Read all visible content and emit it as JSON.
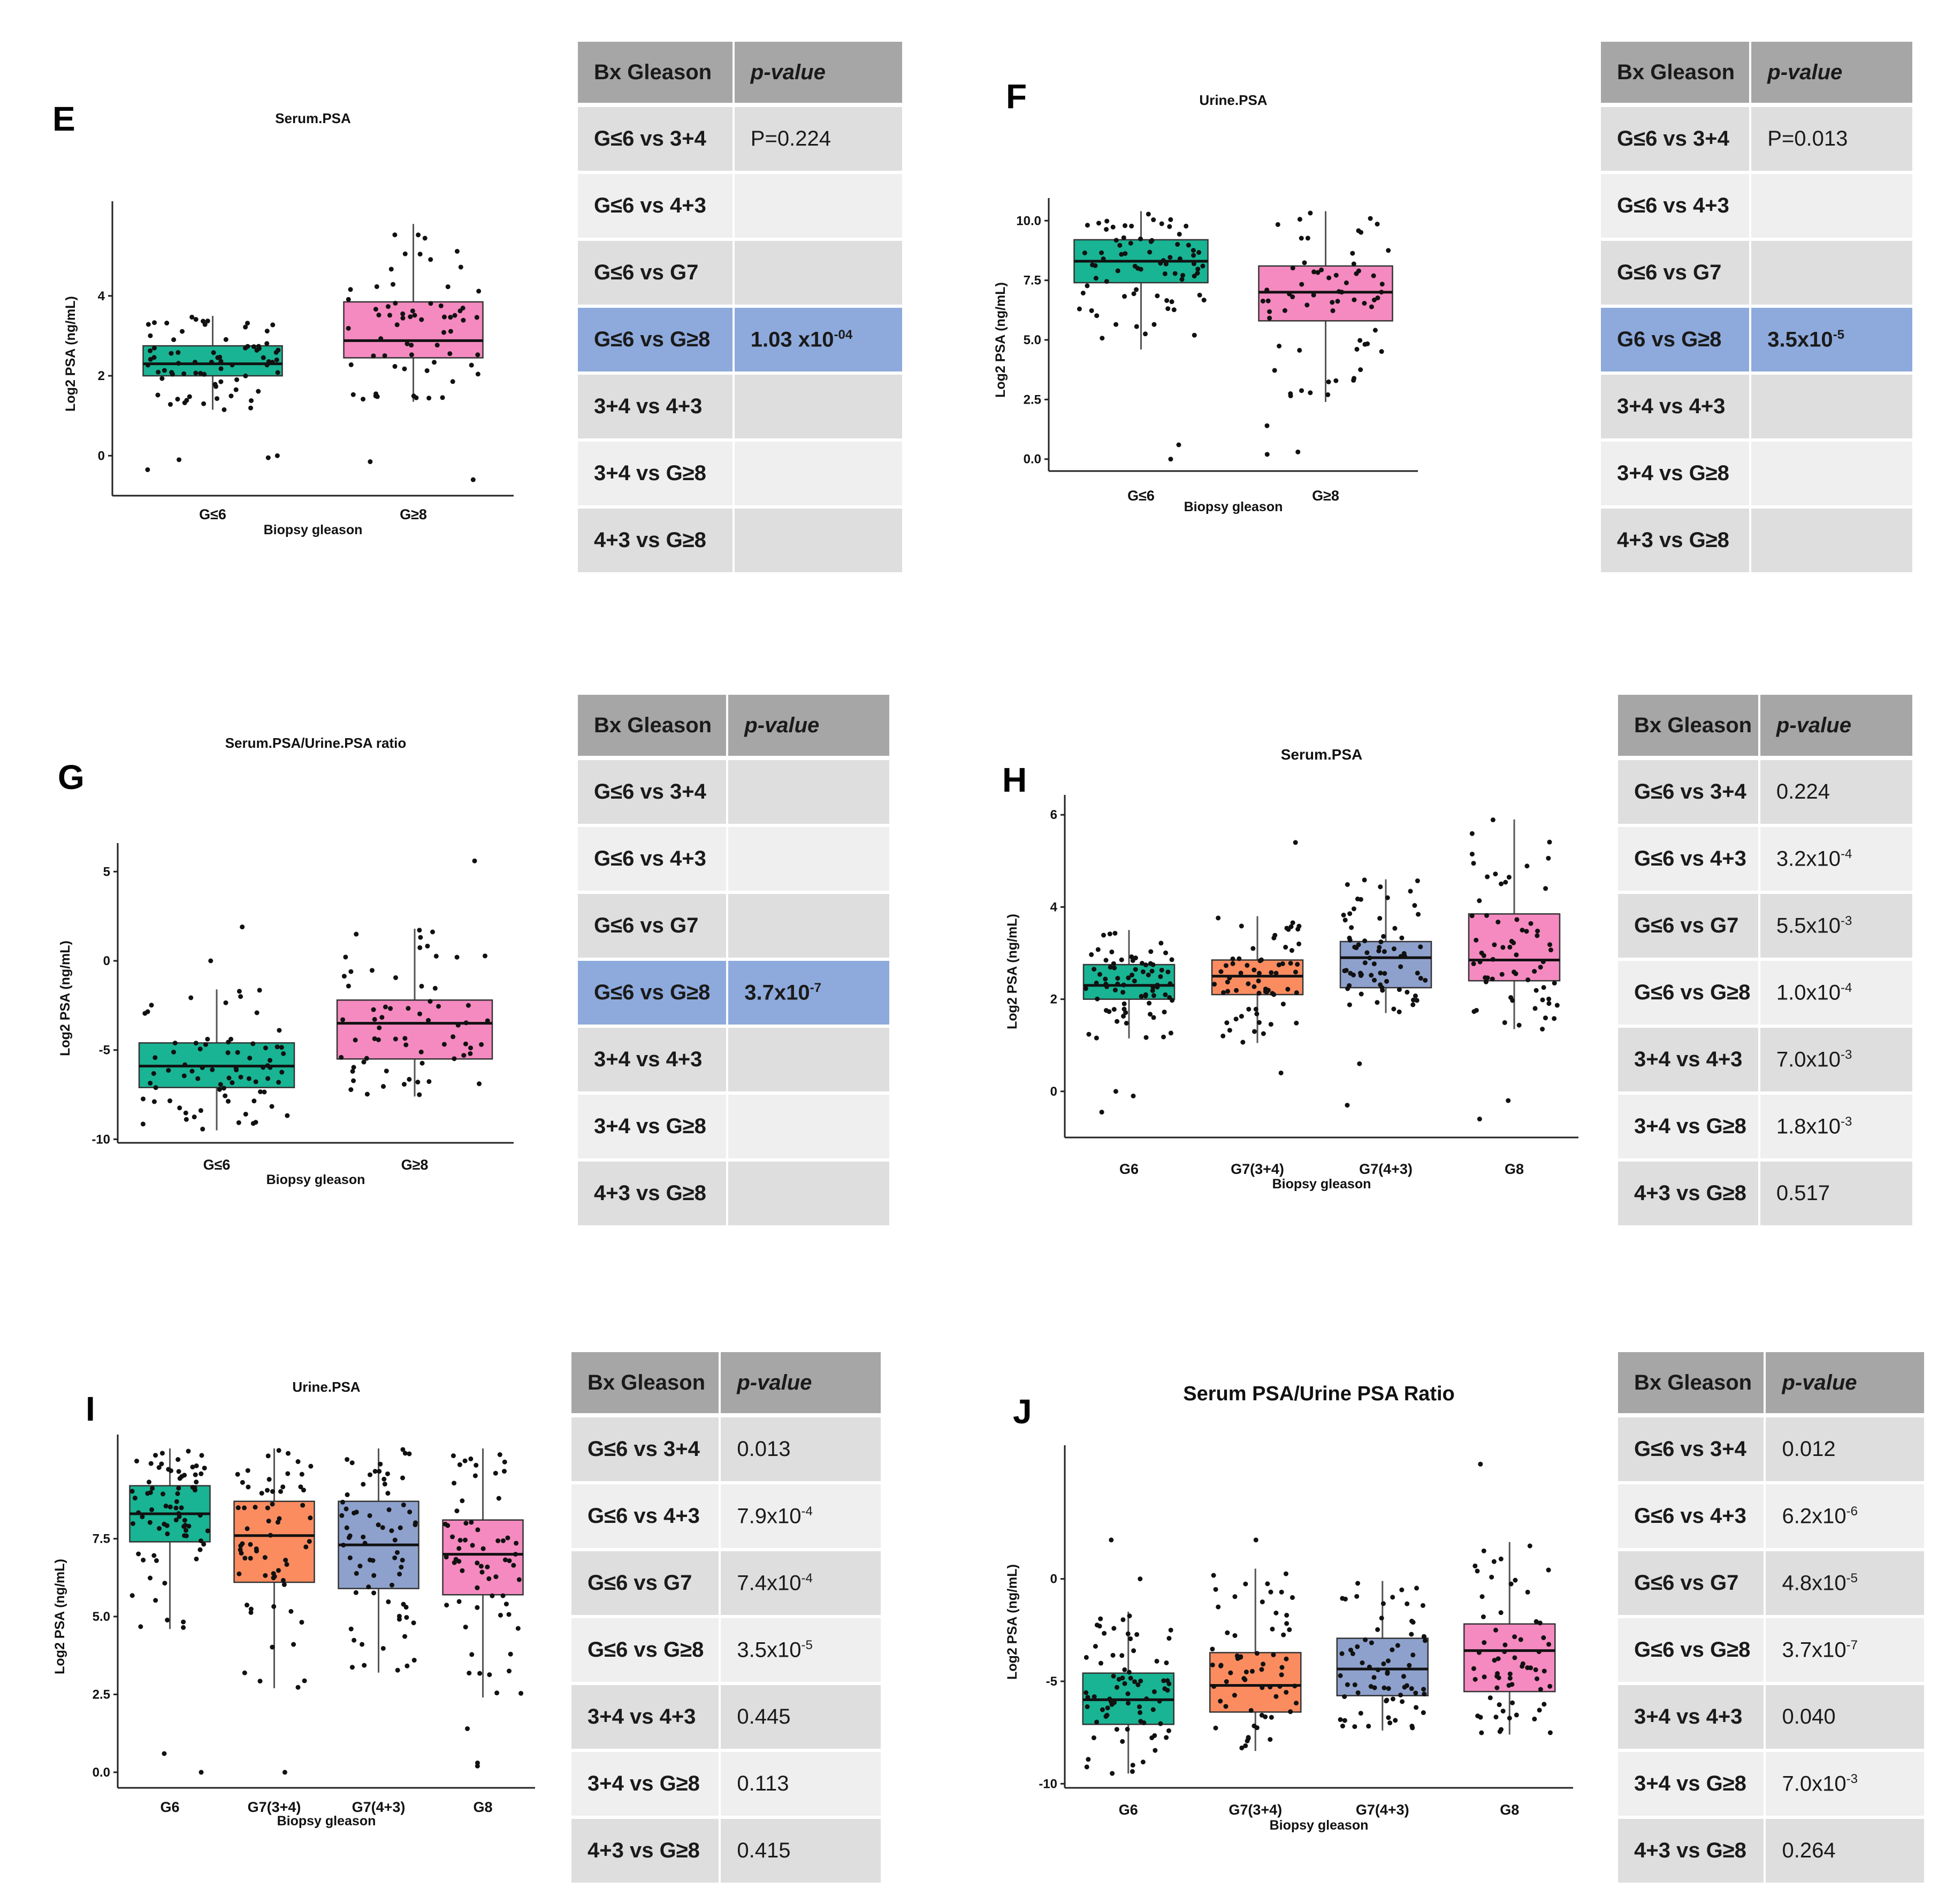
{
  "colors": {
    "G6": "#19b493",
    "G7_34": "#fb8c60",
    "G7_43": "#8ea1cc",
    "G8": "#f48ac0",
    "table_header": "#a6a6a6",
    "table_highlight": "#8eaadc"
  },
  "chart_data": [
    {
      "panel": "E",
      "type": "box",
      "title": "Serum.PSA",
      "xlabel": "Biopsy gleason",
      "ylabel": "Log2 PSA (ng/mL)",
      "ylim": [
        -1,
        6.1
      ],
      "yticks": [
        0,
        2,
        4
      ],
      "ytick_labels": [
        "0",
        "2",
        "4"
      ],
      "categories": [
        "G≤6",
        "G≥8"
      ],
      "boxes": [
        {
          "category": "G≤6",
          "q1": 2.0,
          "median": 2.3,
          "q3": 2.75,
          "whisker_low": 1.15,
          "whisker_high": 3.5,
          "color": "G6",
          "n": 75,
          "outliers": [
            -0.05,
            -0.35,
            0.0,
            -0.1
          ]
        },
        {
          "category": "G≥8",
          "q1": 2.45,
          "median": 2.88,
          "q3": 3.85,
          "whisker_low": 1.35,
          "whisker_high": 5.8,
          "color": "G8",
          "n": 65,
          "outliers": [
            -0.15,
            -0.6
          ]
        }
      ]
    },
    {
      "panel": "F",
      "type": "box",
      "title": "Urine.PSA",
      "xlabel": "Biopsy gleason",
      "ylabel": "Log2 PSA (ng/mL)",
      "ylim": [
        -0.5,
        10.5
      ],
      "yticks": [
        0,
        2.5,
        5,
        7.5,
        10
      ],
      "ytick_labels": [
        "0.0",
        "2.5",
        "5.0",
        "7.5",
        "10.0"
      ],
      "categories": [
        "G≤6",
        "G≥8"
      ],
      "boxes": [
        {
          "category": "G≤6",
          "q1": 7.4,
          "median": 8.3,
          "q3": 9.2,
          "whisker_low": 4.6,
          "whisker_high": 10.4,
          "color": "G6",
          "n": 75,
          "outliers": [
            0.6,
            0.0
          ]
        },
        {
          "category": "G≥8",
          "q1": 5.8,
          "median": 7.0,
          "q3": 8.1,
          "whisker_low": 2.4,
          "whisker_high": 10.4,
          "color": "G8",
          "n": 65,
          "outliers": [
            0.2,
            0.3,
            1.4
          ]
        }
      ]
    },
    {
      "panel": "G",
      "type": "box",
      "title": "Serum.PSA/Urine.PSA ratio",
      "xlabel": "Biopsy gleason",
      "ylabel": "Log2 PSA (ng/mL)",
      "ylim": [
        -10.2,
        6.0
      ],
      "yticks": [
        -10,
        -5,
        0,
        5
      ],
      "ytick_labels": [
        "-10",
        "-5",
        "0",
        "5"
      ],
      "categories": [
        "G≤6",
        "G≥8"
      ],
      "boxes": [
        {
          "category": "G≤6",
          "q1": -7.1,
          "median": -5.9,
          "q3": -4.6,
          "whisker_low": -9.5,
          "whisker_high": -1.6,
          "color": "G6",
          "n": 75,
          "outliers": [
            1.9,
            0.0
          ]
        },
        {
          "category": "G≥8",
          "q1": -5.5,
          "median": -3.5,
          "q3": -2.2,
          "whisker_low": -7.6,
          "whisker_high": 1.8,
          "color": "G8",
          "n": 65,
          "outliers": [
            5.6
          ]
        }
      ]
    },
    {
      "panel": "H",
      "type": "box",
      "title": "Serum.PSA",
      "xlabel": "Biopsy gleason",
      "ylabel": "Log2 PSA (ng/mL)",
      "ylim": [
        -1.0,
        6.2
      ],
      "yticks": [
        0,
        2,
        4,
        6
      ],
      "ytick_labels": [
        "0",
        "2",
        "4",
        "6"
      ],
      "categories": [
        "G6",
        "G7(3+4)",
        "G7(4+3)",
        "G8"
      ],
      "boxes": [
        {
          "category": "G6",
          "q1": 2.0,
          "median": 2.3,
          "q3": 2.75,
          "whisker_low": 1.15,
          "whisker_high": 3.5,
          "color": "G6",
          "n": 75,
          "outliers": [
            -0.1,
            -0.45,
            0.0
          ]
        },
        {
          "category": "G7(3+4)",
          "q1": 2.1,
          "median": 2.5,
          "q3": 2.85,
          "whisker_low": 1.05,
          "whisker_high": 3.8,
          "color": "G7_34",
          "n": 65,
          "outliers": [
            0.4,
            5.4
          ]
        },
        {
          "category": "G7(4+3)",
          "q1": 2.25,
          "median": 2.9,
          "q3": 3.25,
          "whisker_low": 1.7,
          "whisker_high": 4.6,
          "color": "G7_43",
          "n": 70,
          "outliers": [
            0.6,
            -0.3
          ]
        },
        {
          "category": "G8",
          "q1": 2.4,
          "median": 2.85,
          "q3": 3.85,
          "whisker_low": 1.35,
          "whisker_high": 5.9,
          "color": "G8",
          "n": 65,
          "outliers": [
            -0.2,
            -0.6
          ]
        }
      ]
    },
    {
      "panel": "I",
      "type": "box",
      "title": "Urine.PSA",
      "xlabel": "Biopsy gleason",
      "ylabel": "Log2 PSA (ng/mL)",
      "ylim": [
        -0.5,
        10.5
      ],
      "yticks": [
        0,
        2.5,
        5,
        7.5
      ],
      "ytick_labels": [
        "0.0",
        "2.5",
        "5.0",
        "7.5"
      ],
      "categories": [
        "G6",
        "G7(3+4)",
        "G7(4+3)",
        "G8"
      ],
      "boxes": [
        {
          "category": "G6",
          "q1": 7.4,
          "median": 8.3,
          "q3": 9.2,
          "whisker_low": 4.6,
          "whisker_high": 10.4,
          "color": "G6",
          "n": 75,
          "outliers": [
            0.6,
            0.0
          ]
        },
        {
          "category": "G7(3+4)",
          "q1": 6.1,
          "median": 7.6,
          "q3": 8.7,
          "whisker_low": 2.7,
          "whisker_high": 10.4,
          "color": "G7_34",
          "n": 65,
          "outliers": [
            0.0
          ]
        },
        {
          "category": "G7(4+3)",
          "q1": 5.9,
          "median": 7.3,
          "q3": 8.7,
          "whisker_low": 3.2,
          "whisker_high": 10.4,
          "color": "G7_43",
          "n": 70,
          "outliers": []
        },
        {
          "category": "G8",
          "q1": 5.7,
          "median": 7.0,
          "q3": 8.1,
          "whisker_low": 2.4,
          "whisker_high": 10.4,
          "color": "G8",
          "n": 65,
          "outliers": [
            1.4,
            0.2,
            0.3
          ]
        }
      ]
    },
    {
      "panel": "J",
      "type": "box",
      "title": "Serum PSA/Urine PSA Ratio",
      "xlabel": "Biopsy gleason",
      "ylabel": "Log2 PSA (ng/mL)",
      "ylim": [
        -10.2,
        6.0
      ],
      "yticks": [
        -10,
        -5,
        0
      ],
      "ytick_labels": [
        "-10",
        "-5",
        "0"
      ],
      "categories": [
        "G6",
        "G7(3+4)",
        "G7(4+3)",
        "G8"
      ],
      "boxes": [
        {
          "category": "G6",
          "q1": -7.1,
          "median": -5.9,
          "q3": -4.6,
          "whisker_low": -9.5,
          "whisker_high": -1.6,
          "color": "G6",
          "n": 75,
          "outliers": [
            1.9,
            0.0
          ]
        },
        {
          "category": "G7(3+4)",
          "q1": -6.5,
          "median": -5.2,
          "q3": -3.6,
          "whisker_low": -8.4,
          "whisker_high": 0.5,
          "color": "G7_34",
          "n": 65,
          "outliers": [
            1.9
          ]
        },
        {
          "category": "G7(4+3)",
          "q1": -5.7,
          "median": -4.4,
          "q3": -2.9,
          "whisker_low": -7.4,
          "whisker_high": -0.1,
          "color": "G7_43",
          "n": 70,
          "outliers": []
        },
        {
          "category": "G8",
          "q1": -5.5,
          "median": -3.5,
          "q3": -2.2,
          "whisker_low": -7.6,
          "whisker_high": 1.8,
          "color": "G8",
          "n": 65,
          "outliers": [
            5.6
          ]
        }
      ]
    }
  ],
  "tables": {
    "header": {
      "col1": "Bx Gleason",
      "col2": "p-value"
    },
    "E": [
      {
        "cmp": "G≤6 vs 3+4",
        "base": "P=0.224",
        "exp": ""
      },
      {
        "cmp": "G≤6 vs 4+3",
        "base": "",
        "exp": ""
      },
      {
        "cmp": "G≤6 vs G7",
        "base": "",
        "exp": ""
      },
      {
        "cmp": "G≤6 vs G≥8",
        "base": "1.03  x10",
        "exp": "-04",
        "highlight": true
      },
      {
        "cmp": "3+4 vs 4+3",
        "base": "",
        "exp": ""
      },
      {
        "cmp": "3+4 vs G≥8",
        "base": "",
        "exp": ""
      },
      {
        "cmp": "4+3 vs G≥8",
        "base": "",
        "exp": ""
      }
    ],
    "F": [
      {
        "cmp": "G≤6 vs 3+4",
        "base": "P=0.013",
        "exp": ""
      },
      {
        "cmp": "G≤6 vs 4+3",
        "base": "",
        "exp": ""
      },
      {
        "cmp": "G≤6 vs G7",
        "base": "",
        "exp": ""
      },
      {
        "cmp": "G6 vs G≥8",
        "base": "3.5x10",
        "exp": "-5",
        "highlight": true
      },
      {
        "cmp": "3+4 vs 4+3",
        "base": "",
        "exp": ""
      },
      {
        "cmp": "3+4 vs G≥8",
        "base": "",
        "exp": ""
      },
      {
        "cmp": "4+3 vs G≥8",
        "base": "",
        "exp": ""
      }
    ],
    "G": [
      {
        "cmp": "G≤6 vs 3+4",
        "base": "",
        "exp": ""
      },
      {
        "cmp": "G≤6 vs 4+3",
        "base": "",
        "exp": ""
      },
      {
        "cmp": "G≤6 vs G7",
        "base": "",
        "exp": ""
      },
      {
        "cmp": "G≤6 vs G≥8",
        "base": "3.7x10",
        "exp": "-7",
        "highlight": true
      },
      {
        "cmp": "3+4 vs 4+3",
        "base": "",
        "exp": ""
      },
      {
        "cmp": "3+4 vs G≥8",
        "base": "",
        "exp": ""
      },
      {
        "cmp": "4+3 vs G≥8",
        "base": "",
        "exp": ""
      }
    ],
    "H": [
      {
        "cmp": "G≤6 vs 3+4",
        "base": "0.224",
        "exp": ""
      },
      {
        "cmp": "G≤6 vs 4+3",
        "base": "3.2x10",
        "exp": "-4"
      },
      {
        "cmp": "G≤6 vs G7",
        "base": "5.5x10",
        "exp": "-3"
      },
      {
        "cmp": "G≤6 vs G≥8",
        "base": "1.0x10",
        "exp": "-4"
      },
      {
        "cmp": "3+4 vs 4+3",
        "base": "7.0x10",
        "exp": "-3"
      },
      {
        "cmp": "3+4 vs G≥8",
        "base": "1.8x10",
        "exp": "-3"
      },
      {
        "cmp": "4+3 vs G≥8",
        "base": "0.517",
        "exp": ""
      }
    ],
    "I": [
      {
        "cmp": "G≤6 vs 3+4",
        "base": "0.013",
        "exp": ""
      },
      {
        "cmp": "G≤6 vs 4+3",
        "base": "7.9x10",
        "exp": "-4"
      },
      {
        "cmp": "G≤6 vs G7",
        "base": "7.4x10",
        "exp": "-4"
      },
      {
        "cmp": "G≤6 vs G≥8",
        "base": "3.5x10",
        "exp": "-5"
      },
      {
        "cmp": "3+4 vs 4+3",
        "base": "0.445",
        "exp": ""
      },
      {
        "cmp": "3+4 vs G≥8",
        "base": "0.113",
        "exp": ""
      },
      {
        "cmp": "4+3 vs G≥8",
        "base": "0.415",
        "exp": ""
      }
    ],
    "J": [
      {
        "cmp": "G≤6 vs 3+4",
        "base": "0.012",
        "exp": ""
      },
      {
        "cmp": "G≤6 vs 4+3",
        "base": "6.2x10",
        "exp": "-6"
      },
      {
        "cmp": "G≤6 vs G7",
        "base": "4.8x10",
        "exp": "-5"
      },
      {
        "cmp": "G≤6 vs G≥8",
        "base": "3.7x10",
        "exp": "-7"
      },
      {
        "cmp": "3+4 vs 4+3",
        "base": "0.040",
        "exp": ""
      },
      {
        "cmp": "3+4 vs G≥8",
        "base": "7.0x10",
        "exp": "-3"
      },
      {
        "cmp": "4+3 vs G≥8",
        "base": "0.264",
        "exp": ""
      }
    ]
  }
}
